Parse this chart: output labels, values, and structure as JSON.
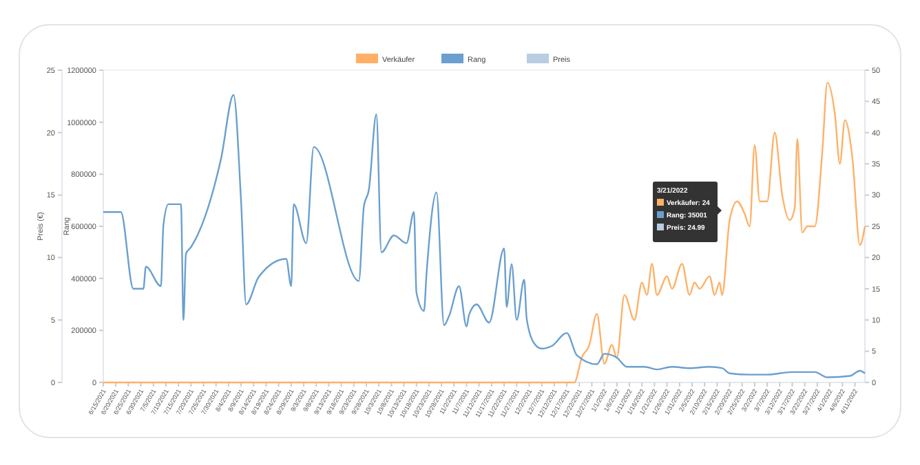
{
  "chart_data": {
    "type": "line",
    "ylabel": "Preis (€)",
    "y2label": "Rang",
    "legend": "top",
    "marker": "none",
    "line_style": "solid",
    "xlim": [
      "2021-06-15",
      "2022-04-15"
    ],
    "xticks": [
      {
        "value": "2021-06-15",
        "label": "6/15/2021"
      },
      {
        "value": "2021-06-20",
        "label": "6/20/2021"
      },
      {
        "value": "2021-06-25",
        "label": "6/25/2021"
      },
      {
        "value": "2021-06-30",
        "label": "6/30/2021"
      },
      {
        "value": "2021-07-05",
        "label": "7/5/2021"
      },
      {
        "value": "2021-07-10",
        "label": "7/10/2021"
      },
      {
        "value": "2021-07-15",
        "label": "7/15/2021"
      },
      {
        "value": "2021-07-20",
        "label": "7/20/2021"
      },
      {
        "value": "2021-07-25",
        "label": "7/25/2021"
      },
      {
        "value": "2021-07-30",
        "label": "7/30/2021"
      },
      {
        "value": "2021-08-04",
        "label": "8/4/2021"
      },
      {
        "value": "2021-08-09",
        "label": "8/9/2021"
      },
      {
        "value": "2021-08-14",
        "label": "8/14/2021"
      },
      {
        "value": "2021-08-19",
        "label": "8/19/2021"
      },
      {
        "value": "2021-08-24",
        "label": "8/24/2021"
      },
      {
        "value": "2021-08-29",
        "label": "8/29/2021"
      },
      {
        "value": "2021-09-03",
        "label": "9/3/2021"
      },
      {
        "value": "2021-09-08",
        "label": "9/8/2021"
      },
      {
        "value": "2021-09-13",
        "label": "9/13/2021"
      },
      {
        "value": "2021-09-18",
        "label": "9/18/2021"
      },
      {
        "value": "2021-09-23",
        "label": "9/23/2021"
      },
      {
        "value": "2021-09-28",
        "label": "9/28/2021"
      },
      {
        "value": "2021-10-03",
        "label": "10/3/2021"
      },
      {
        "value": "2021-10-08",
        "label": "10/8/2021"
      },
      {
        "value": "2021-10-13",
        "label": "10/13/2021"
      },
      {
        "value": "2021-10-18",
        "label": "10/18/2021"
      },
      {
        "value": "2021-10-23",
        "label": "10/23/2021"
      },
      {
        "value": "2021-10-28",
        "label": "10/28/2021"
      },
      {
        "value": "2021-11-02",
        "label": "11/2/2021"
      },
      {
        "value": "2021-11-07",
        "label": "11/7/2021"
      },
      {
        "value": "2021-11-12",
        "label": "11/12/2021"
      },
      {
        "value": "2021-11-17",
        "label": "11/17/2021"
      },
      {
        "value": "2021-11-22",
        "label": "11/22/2021"
      },
      {
        "value": "2021-11-27",
        "label": "11/27/2021"
      },
      {
        "value": "2021-12-02",
        "label": "12/2/2021"
      },
      {
        "value": "2021-12-07",
        "label": "12/7/2021"
      },
      {
        "value": "2021-12-12",
        "label": "12/12/2021"
      },
      {
        "value": "2021-12-17",
        "label": "12/17/2021"
      },
      {
        "value": "2021-12-22",
        "label": "12/22/2021"
      },
      {
        "value": "2021-12-27",
        "label": "12/27/2021"
      },
      {
        "value": "2022-01-01",
        "label": "1/1/2022"
      },
      {
        "value": "2022-01-06",
        "label": "1/6/2022"
      },
      {
        "value": "2022-01-11",
        "label": "1/11/2022"
      },
      {
        "value": "2022-01-16",
        "label": "1/16/2022"
      },
      {
        "value": "2022-01-21",
        "label": "1/21/2022"
      },
      {
        "value": "2022-01-26",
        "label": "1/26/2022"
      },
      {
        "value": "2022-01-31",
        "label": "1/31/2022"
      },
      {
        "value": "2022-02-05",
        "label": "2/5/2022"
      },
      {
        "value": "2022-02-10",
        "label": "2/10/2022"
      },
      {
        "value": "2022-02-15",
        "label": "2/15/2022"
      },
      {
        "value": "2022-02-20",
        "label": "2/20/2022"
      },
      {
        "value": "2022-02-25",
        "label": "2/25/2022"
      },
      {
        "value": "2022-03-02",
        "label": "3/2/2022"
      },
      {
        "value": "2022-03-07",
        "label": "3/7/2022"
      },
      {
        "value": "2022-03-12",
        "label": "3/12/2022"
      },
      {
        "value": "2022-03-17",
        "label": "3/17/2022"
      },
      {
        "value": "2022-03-22",
        "label": "3/22/2022"
      },
      {
        "value": "2022-03-27",
        "label": "3/27/2022"
      },
      {
        "value": "2022-04-01",
        "label": "4/1/2022"
      },
      {
        "value": "2022-04-06",
        "label": "4/6/2022"
      },
      {
        "value": "2022-04-11",
        "label": "4/11/2022"
      }
    ],
    "ylim": [
      0,
      25
    ],
    "yticks": [
      0,
      5,
      10,
      15,
      20,
      25
    ],
    "y2lim": [
      0,
      1200000
    ],
    "y2ticks": [
      0,
      200000,
      400000,
      600000,
      800000,
      1000000,
      1200000
    ],
    "y3lim": [
      0,
      50
    ],
    "y3ticks": [
      0,
      5,
      10,
      15,
      20,
      25,
      30,
      35,
      40,
      45,
      50
    ],
    "series": [
      {
        "name": "Verkäufer",
        "color": "#ffb066",
        "axis": "y3",
        "x": [
          "2021-06-15",
          "2021-12-20",
          "2021-12-23",
          "2021-12-26",
          "2021-12-29",
          "2022-01-01",
          "2022-01-04",
          "2022-01-06",
          "2022-01-09",
          "2022-01-13",
          "2022-01-16",
          "2022-01-18",
          "2022-01-20",
          "2022-01-22",
          "2022-01-26",
          "2022-01-28",
          "2022-02-01",
          "2022-02-04",
          "2022-02-06",
          "2022-02-08",
          "2022-02-12",
          "2022-02-14",
          "2022-02-16",
          "2022-02-17",
          "2022-02-20",
          "2022-02-23",
          "2022-02-26",
          "2022-02-28",
          "2022-03-02",
          "2022-03-04",
          "2022-03-07",
          "2022-03-10",
          "2022-03-13",
          "2022-03-16",
          "2022-03-18",
          "2022-03-19",
          "2022-03-21",
          "2022-03-23",
          "2022-03-26",
          "2022-03-29",
          "2022-03-31",
          "2022-04-03",
          "2022-04-05",
          "2022-04-07",
          "2022-04-10",
          "2022-04-13",
          "2022-04-15"
        ],
        "values": [
          0,
          0,
          4,
          6,
          11,
          3,
          6,
          4,
          14,
          10,
          16,
          14,
          19,
          14,
          17,
          15,
          19,
          14,
          16,
          15,
          17,
          14,
          16,
          14,
          26,
          29,
          27,
          25,
          38,
          29,
          29,
          40,
          30,
          26,
          28,
          39,
          24,
          25,
          25,
          37,
          48,
          43,
          35,
          42,
          36,
          22,
          25
        ]
      },
      {
        "name": "Rang",
        "color": "#6a9fcf",
        "axis": "y2",
        "x": [
          "2021-06-15",
          "2021-06-22",
          "2021-06-27",
          "2021-07-01",
          "2021-07-02",
          "2021-07-08",
          "2021-07-09",
          "2021-07-11",
          "2021-07-16",
          "2021-07-17",
          "2021-07-18",
          "2021-07-20",
          "2021-08-01",
          "2021-08-06",
          "2021-08-09",
          "2021-08-11",
          "2021-08-16",
          "2021-08-27",
          "2021-08-29",
          "2021-08-30",
          "2021-09-04",
          "2021-09-07",
          "2021-09-25",
          "2021-09-27",
          "2021-09-29",
          "2021-10-02",
          "2021-10-04",
          "2021-10-09",
          "2021-10-14",
          "2021-10-17",
          "2021-10-18",
          "2021-10-21",
          "2021-10-22",
          "2021-10-26",
          "2021-10-29",
          "2021-10-31",
          "2021-11-04",
          "2021-11-07",
          "2021-11-08",
          "2021-11-11",
          "2021-11-16",
          "2021-11-22",
          "2021-11-23",
          "2021-11-25",
          "2021-11-27",
          "2021-11-30",
          "2021-12-01",
          "2021-12-04",
          "2021-12-07",
          "2021-12-11",
          "2021-12-17",
          "2021-12-21",
          "2021-12-29",
          "2022-01-01",
          "2022-01-06",
          "2022-01-10",
          "2022-01-17",
          "2022-01-22",
          "2022-01-28",
          "2022-02-04",
          "2022-02-12",
          "2022-02-17",
          "2022-02-20",
          "2022-02-28",
          "2022-03-07",
          "2022-03-17",
          "2022-03-26",
          "2022-03-31",
          "2022-04-09",
          "2022-04-13",
          "2022-04-15"
        ],
        "values": [
          655000,
          655000,
          360000,
          360000,
          445000,
          370000,
          605000,
          685000,
          685000,
          240000,
          495000,
          520000,
          860000,
          1105000,
          695000,
          300000,
          405000,
          475000,
          370000,
          685000,
          535000,
          905000,
          390000,
          675000,
          740000,
          1030000,
          500000,
          565000,
          535000,
          655000,
          345000,
          275000,
          415000,
          730000,
          220000,
          255000,
          370000,
          215000,
          260000,
          300000,
          230000,
          515000,
          290000,
          455000,
          240000,
          395000,
          245000,
          150000,
          130000,
          140000,
          190000,
          105000,
          70000,
          110000,
          95000,
          60000,
          60000,
          50000,
          60000,
          55000,
          60000,
          55000,
          35000,
          30000,
          30000,
          40000,
          40000,
          20000,
          25000,
          45000,
          35000
        ]
      },
      {
        "name": "Preis",
        "color": "#b8cde2",
        "axis": "y"
      }
    ],
    "annotations": [
      "3/21/2022",
      "Verkäufer: 24",
      "Rang: 35001",
      "Preis: 24.99"
    ]
  }
}
